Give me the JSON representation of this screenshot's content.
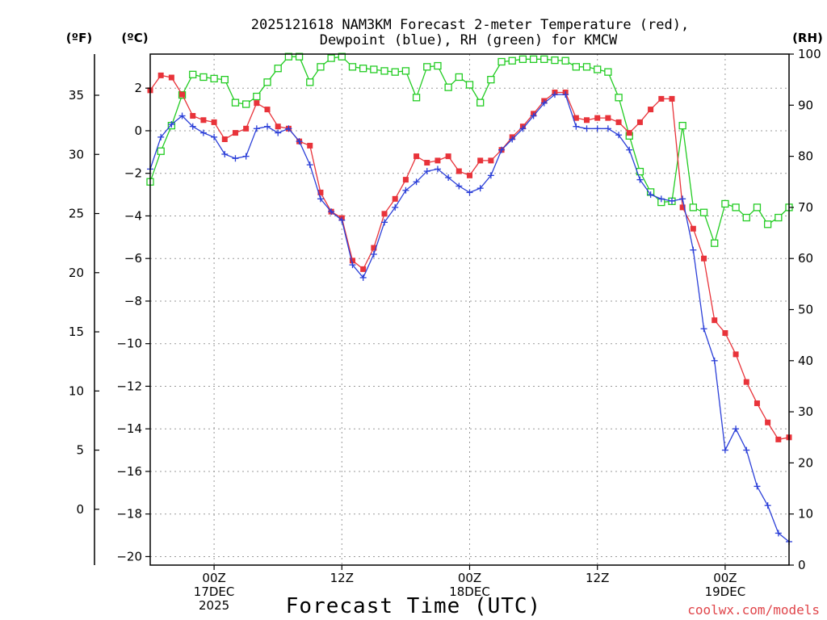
{
  "chart_data": {
    "type": "line",
    "title_line1": "2025121618 NAM3KM Forecast 2-meter Temperature (red),",
    "title_line2": "Dewpoint (blue), RH (green) for KMCW",
    "unit_f": "(ºF)",
    "unit_c": "(ºC)",
    "unit_rh": "(RH)",
    "xlabel": "Forecast Time (UTC)",
    "credit": "coolwx.com/models",
    "x_hours_range": [
      0,
      60
    ],
    "y_celsius_range": [
      -20.4,
      3.6
    ],
    "y_rh_range": [
      0,
      100
    ],
    "celsius_ticks": [
      2,
      0,
      -2,
      -4,
      -6,
      -8,
      -10,
      -12,
      -14,
      -16,
      -18,
      -20
    ],
    "celsius_tick_labels": [
      "2",
      "0",
      "−2",
      "−4",
      "−6",
      "−8",
      "−10",
      "−12",
      "−14",
      "−16",
      "−18",
      "−20"
    ],
    "fahrenheit_ticks": [
      35,
      30,
      25,
      20,
      15,
      10,
      5,
      0
    ],
    "fahrenheit_tick_labels": [
      "35",
      "30",
      "25",
      "20",
      "15",
      "10",
      "5",
      "0"
    ],
    "rh_ticks": [
      100,
      90,
      80,
      70,
      60,
      50,
      40,
      30,
      20,
      10,
      0
    ],
    "rh_tick_labels": [
      "100",
      "90",
      "80",
      "70",
      "60",
      "50",
      "40",
      "30",
      "20",
      "10",
      "0"
    ],
    "x_ticks": [
      {
        "hour": 6,
        "lines": [
          "00Z",
          "17DEC",
          "2025"
        ]
      },
      {
        "hour": 18,
        "lines": [
          "12Z"
        ]
      },
      {
        "hour": 30,
        "lines": [
          "00Z",
          "18DEC"
        ]
      },
      {
        "hour": 42,
        "lines": [
          "12Z"
        ]
      },
      {
        "hour": 54,
        "lines": [
          "00Z",
          "19DEC"
        ]
      }
    ],
    "series": [
      {
        "name": "Temperature (C)",
        "color": "#e8333a",
        "marker": "filled-square",
        "axis": "celsius",
        "x": [
          0,
          1,
          2,
          3,
          4,
          5,
          6,
          7,
          8,
          9,
          10,
          11,
          12,
          13,
          14,
          15,
          16,
          17,
          18,
          19,
          20,
          21,
          22,
          23,
          24,
          25,
          26,
          27,
          28,
          29,
          30,
          31,
          32,
          33,
          34,
          35,
          36,
          37,
          38,
          39,
          40,
          41,
          42,
          43,
          44,
          45,
          46,
          47,
          48,
          49,
          50,
          51,
          52,
          53,
          54,
          55,
          56,
          57,
          58,
          59,
          60
        ],
        "values": [
          1.9,
          2.6,
          2.5,
          1.7,
          0.7,
          0.5,
          0.4,
          -0.4,
          -0.1,
          0.1,
          1.3,
          1.0,
          0.2,
          0.1,
          -0.5,
          -0.7,
          -2.9,
          -3.8,
          -4.1,
          -6.1,
          -6.5,
          -5.5,
          -3.9,
          -3.2,
          -2.3,
          -1.2,
          -1.5,
          -1.4,
          -1.2,
          -1.9,
          -2.1,
          -1.4,
          -1.4,
          -0.9,
          -0.3,
          0.2,
          0.8,
          1.4,
          1.8,
          1.8,
          0.6,
          0.5,
          0.6,
          0.6,
          0.4,
          -0.1,
          0.4,
          1.0,
          1.5,
          1.5,
          -3.6,
          -4.6,
          -6.0,
          -8.9,
          -9.5,
          -10.5,
          -11.8,
          -12.8,
          -13.7,
          -14.5,
          -14.4
        ]
      },
      {
        "name": "Dewpoint (C)",
        "color": "#2b3fd8",
        "marker": "plus",
        "axis": "celsius",
        "x": [
          0,
          1,
          2,
          3,
          4,
          5,
          6,
          7,
          8,
          9,
          10,
          11,
          12,
          13,
          14,
          15,
          16,
          17,
          18,
          19,
          20,
          21,
          22,
          23,
          24,
          25,
          26,
          27,
          28,
          29,
          30,
          31,
          32,
          33,
          34,
          35,
          36,
          37,
          38,
          39,
          40,
          41,
          42,
          43,
          44,
          45,
          46,
          47,
          48,
          49,
          50,
          51,
          52,
          53,
          54,
          55,
          56,
          57,
          58,
          59,
          60
        ],
        "values": [
          -1.8,
          -0.3,
          0.3,
          0.7,
          0.2,
          -0.1,
          -0.3,
          -1.1,
          -1.3,
          -1.2,
          0.1,
          0.2,
          -0.1,
          0.1,
          -0.5,
          -1.6,
          -3.2,
          -3.8,
          -4.2,
          -6.3,
          -6.9,
          -5.8,
          -4.3,
          -3.6,
          -2.8,
          -2.4,
          -1.9,
          -1.8,
          -2.2,
          -2.6,
          -2.9,
          -2.7,
          -2.1,
          -0.9,
          -0.4,
          0.1,
          0.7,
          1.3,
          1.7,
          1.7,
          0.2,
          0.1,
          0.1,
          0.1,
          -0.2,
          -0.9,
          -2.3,
          -3.0,
          -3.2,
          -3.3,
          -3.2,
          -5.6,
          -9.3,
          -10.8,
          -15.0,
          -14.0,
          -15.0,
          -16.7,
          -17.6,
          -18.9,
          -19.3
        ]
      },
      {
        "name": "RH (%)",
        "color": "#22cc22",
        "marker": "open-square",
        "axis": "rh",
        "x": [
          0,
          1,
          2,
          3,
          4,
          5,
          6,
          7,
          8,
          9,
          10,
          11,
          12,
          13,
          14,
          15,
          16,
          17,
          18,
          19,
          20,
          21,
          22,
          23,
          24,
          25,
          26,
          27,
          28,
          29,
          30,
          31,
          32,
          33,
          34,
          35,
          36,
          37,
          38,
          39,
          40,
          41,
          42,
          43,
          44,
          45,
          46,
          47,
          48,
          49,
          50,
          51,
          52,
          53,
          54,
          55,
          56,
          57,
          58,
          59,
          60
        ],
        "values": [
          75,
          81,
          86,
          92,
          96,
          95.5,
          95.2,
          95,
          90.5,
          90.2,
          91.7,
          94.5,
          97.2,
          99.5,
          99.5,
          94.5,
          97.5,
          99.2,
          99.5,
          97.5,
          97.2,
          97,
          96.7,
          96.5,
          96.7,
          91.5,
          97.5,
          97.7,
          93.5,
          95.5,
          94,
          90.5,
          95,
          98.5,
          98.7,
          99,
          99,
          99,
          98.8,
          98.7,
          97.5,
          97.5,
          97,
          96.5,
          91.5,
          84,
          77,
          73,
          71,
          71.2,
          86,
          70,
          69,
          63,
          70.7,
          70,
          68,
          70,
          66.7,
          68,
          70
        ]
      }
    ]
  }
}
